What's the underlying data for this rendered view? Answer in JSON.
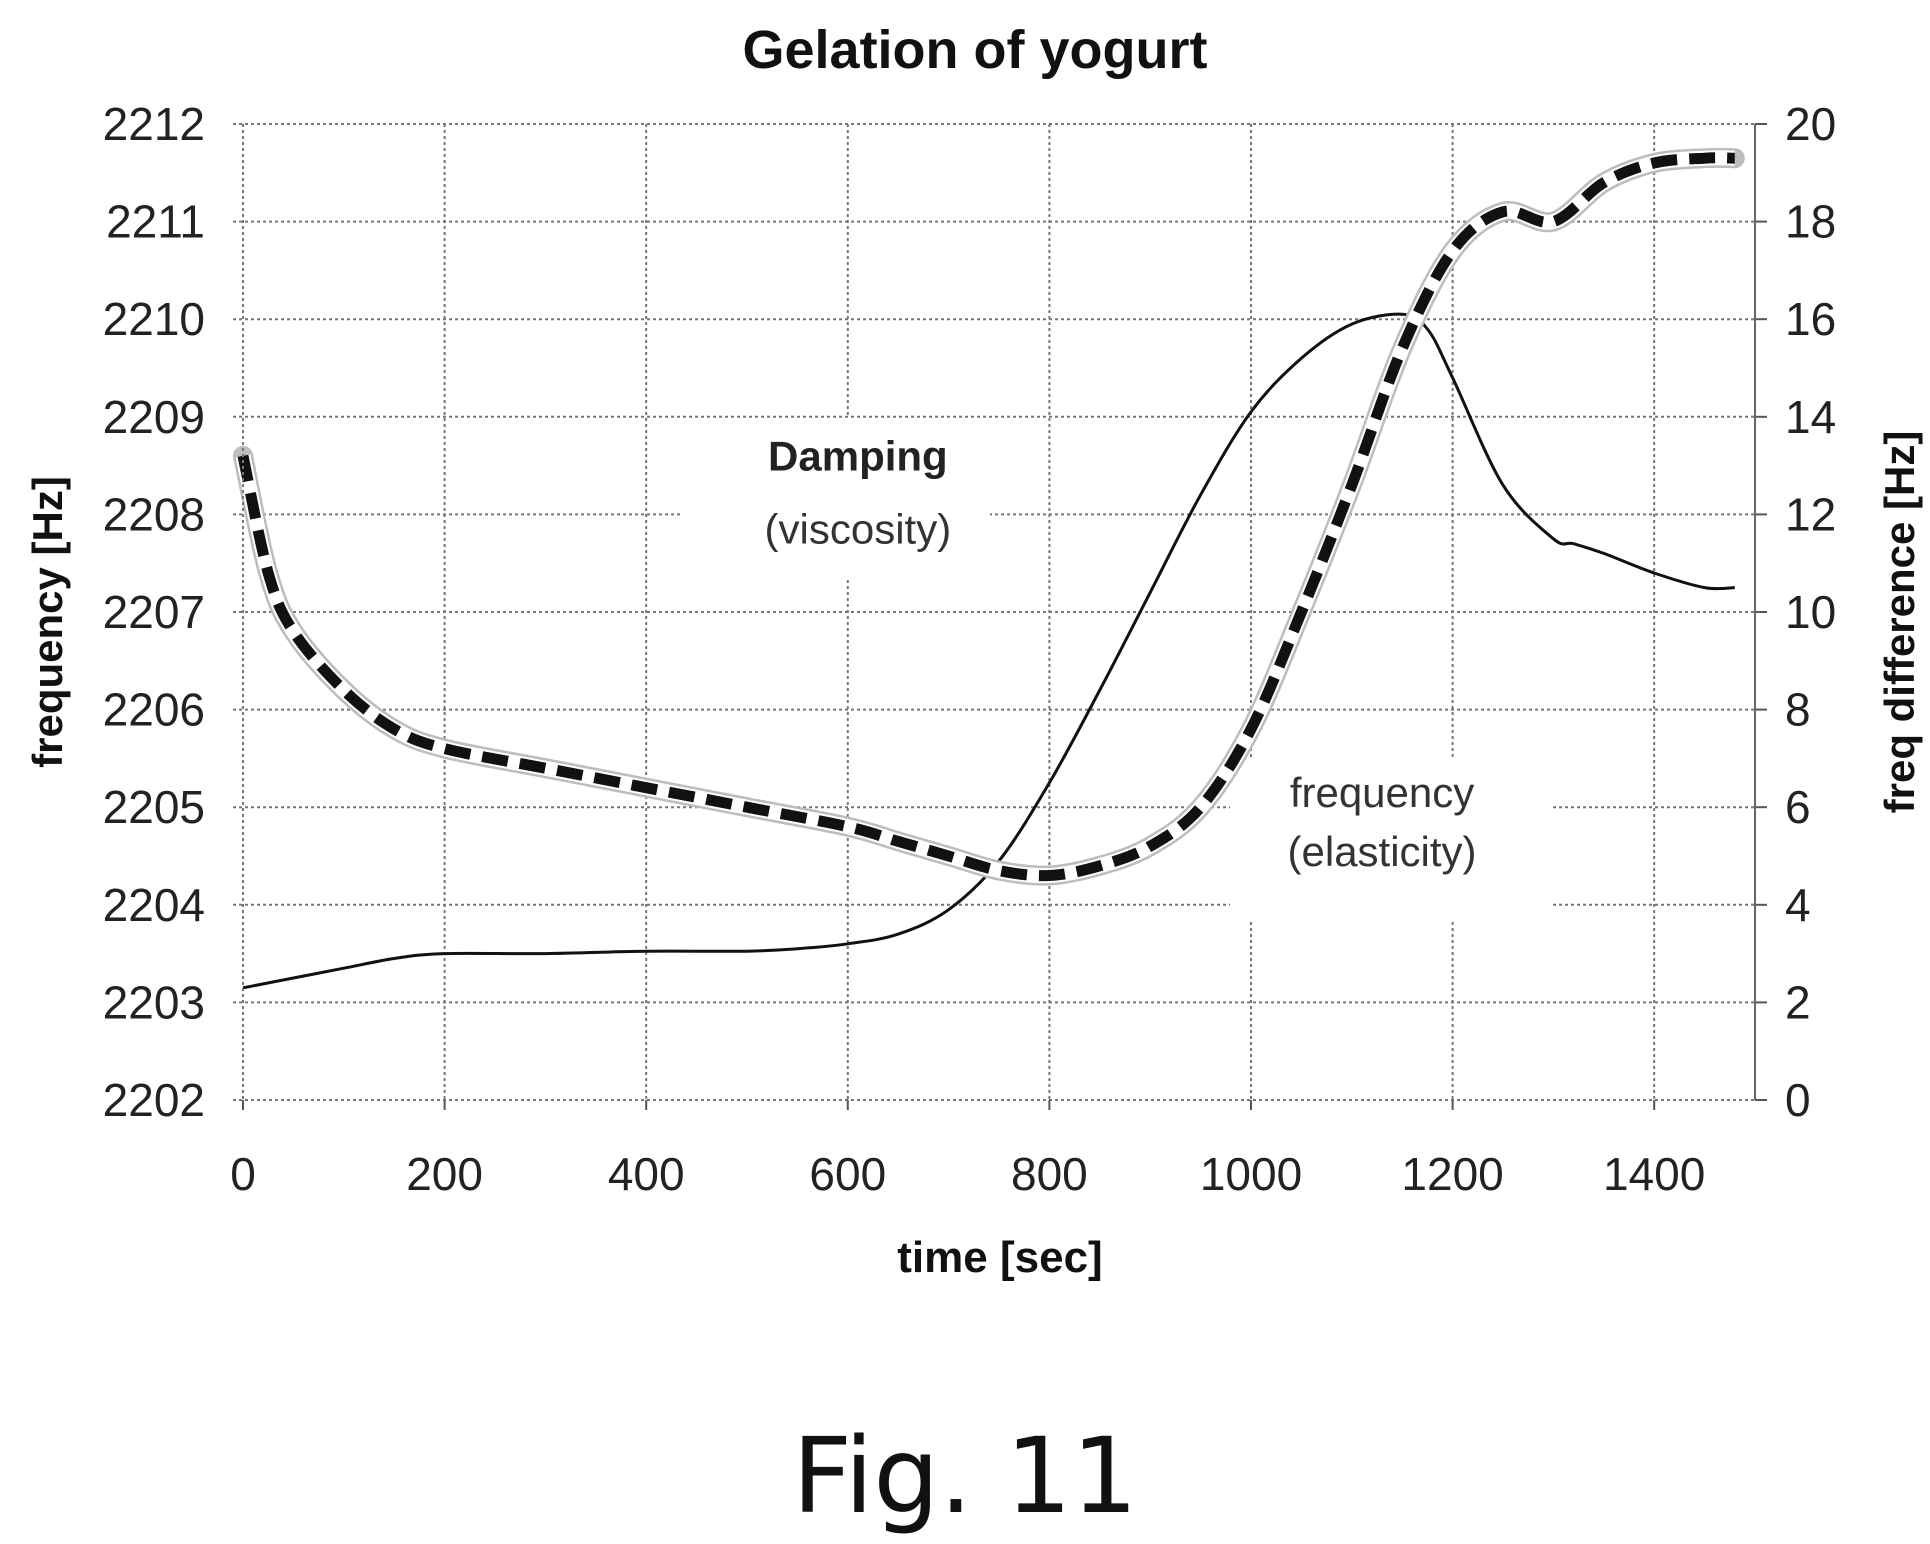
{
  "chart_data": {
    "type": "line",
    "title": "Gelation of yogurt",
    "xlabel": "time [sec]",
    "ylabel_left": "frequency [Hz]",
    "ylabel_right": "freq difference [Hz]",
    "xlim": [
      0,
      1500
    ],
    "ylim_left": [
      2202,
      2212
    ],
    "ylim_right": [
      0,
      20
    ],
    "xticks": [
      "0",
      "200",
      "400",
      "600",
      "800",
      "1000",
      "1200",
      "1400"
    ],
    "yticks_left": [
      "2202",
      "2203",
      "2204",
      "2205",
      "2206",
      "2207",
      "2208",
      "2209",
      "2210",
      "2211",
      "2212"
    ],
    "yticks_right": [
      "0",
      "2",
      "4",
      "6",
      "8",
      "10",
      "12",
      "14",
      "16",
      "18",
      "20"
    ],
    "grid": true,
    "series": [
      {
        "axis": "right",
        "style": "solid",
        "x": [
          0,
          50,
          100,
          150,
          200,
          300,
          400,
          500,
          550,
          600,
          650,
          700,
          750,
          800,
          850,
          900,
          950,
          1000,
          1050,
          1100,
          1150,
          1175,
          1200,
          1250,
          1300,
          1320,
          1350,
          1400,
          1450,
          1480
        ],
        "y": [
          2.3,
          2.5,
          2.7,
          2.9,
          3.0,
          3.0,
          3.05,
          3.05,
          3.1,
          3.2,
          3.4,
          3.9,
          4.9,
          6.5,
          8.4,
          10.4,
          12.4,
          14.1,
          15.2,
          15.9,
          16.1,
          15.8,
          14.8,
          12.6,
          11.5,
          11.4,
          11.2,
          10.8,
          10.5,
          10.5
        ]
      },
      {
        "axis": "left",
        "style": "dashed",
        "x": [
          0,
          25,
          50,
          100,
          150,
          200,
          300,
          400,
          500,
          600,
          650,
          700,
          750,
          800,
          850,
          900,
          950,
          1000,
          1050,
          1100,
          1150,
          1200,
          1250,
          1300,
          1350,
          1400,
          1450,
          1480
        ],
        "y": [
          2208.6,
          2207.4,
          2206.8,
          2206.2,
          2205.8,
          2205.6,
          2205.4,
          2205.2,
          2205.0,
          2204.8,
          2204.65,
          2204.5,
          2204.35,
          2204.3,
          2204.4,
          2204.6,
          2205.0,
          2205.8,
          2207.0,
          2208.3,
          2209.7,
          2210.7,
          2211.1,
          2211.0,
          2211.4,
          2211.6,
          2211.65,
          2211.65
        ]
      }
    ],
    "annotations": [
      {
        "label": "Damping",
        "x": 610,
        "y": 2208.45,
        "bold": true
      },
      {
        "label": "(viscosity)",
        "x": 610,
        "y": 2207.7,
        "bold": false
      },
      {
        "label": "frequency",
        "x": 1130,
        "y": 2205.0,
        "bold": false
      },
      {
        "label": "(elasticity)",
        "x": 1130,
        "y": 2204.4,
        "bold": false
      }
    ]
  },
  "caption": "Fig. 11"
}
